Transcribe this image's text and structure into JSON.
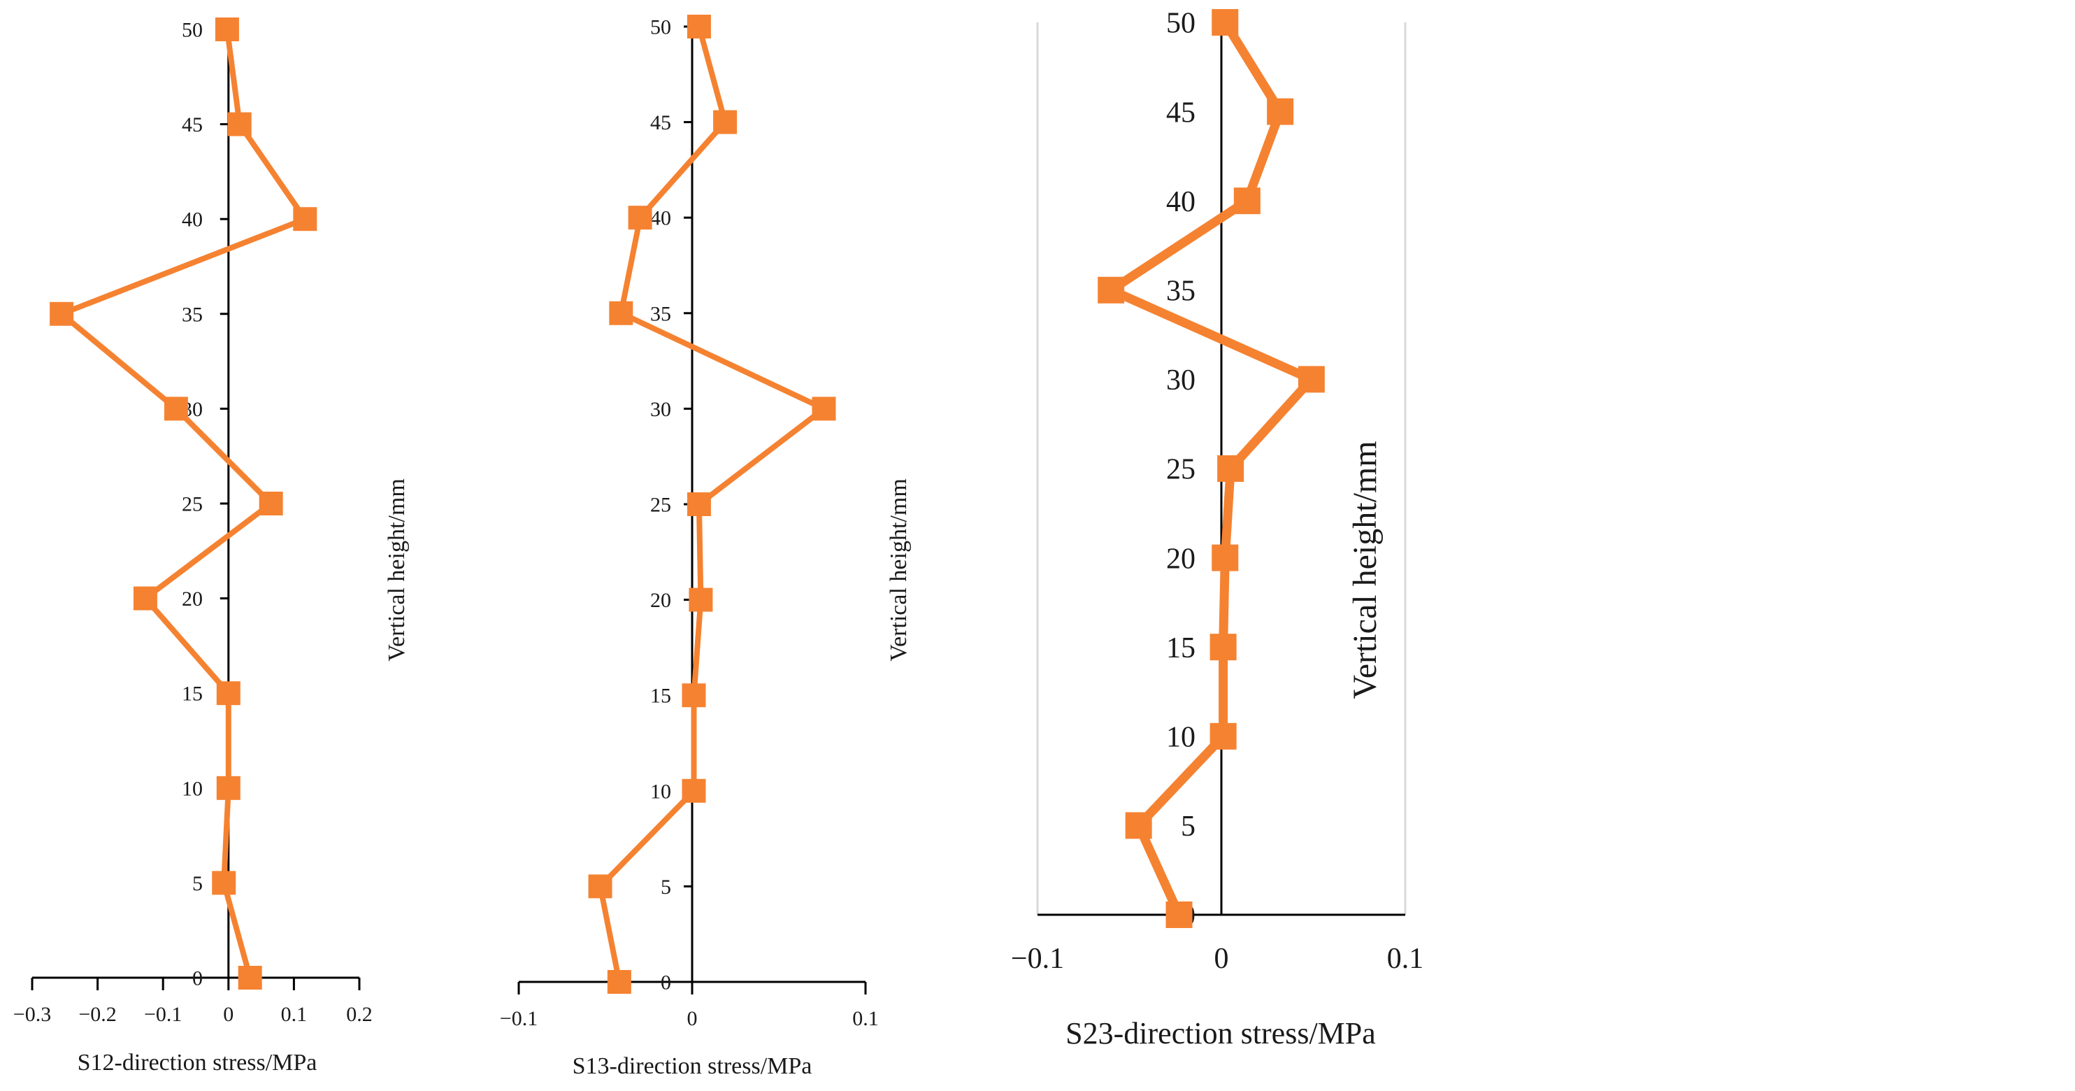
{
  "chart_data": [
    {
      "type": "line",
      "orientation": "vertical-profile",
      "xlabel": "S12-direction stress/MPa",
      "ylabel": "Vertical height/mm",
      "xlim": [
        -0.3,
        0.2
      ],
      "ylim": [
        0,
        50
      ],
      "x_ticks": [
        -0.3,
        -0.2,
        -0.1,
        0,
        0.1,
        0.2
      ],
      "x_tick_labels": [
        "−0.3",
        "−0.2",
        "−0.1",
        "0",
        "0.1",
        "0.2"
      ],
      "y_ticks": [
        0,
        5,
        10,
        15,
        20,
        25,
        30,
        35,
        40,
        45,
        50
      ],
      "series": [
        {
          "name": "S12",
          "color": "#f58231",
          "y": [
            0,
            5,
            10,
            15,
            20,
            25,
            30,
            35,
            40,
            45,
            50
          ],
          "x": [
            0.033,
            -0.007,
            0,
            0,
            -0.127,
            0.065,
            -0.08,
            -0.255,
            0.117,
            0.017,
            -0.002
          ]
        }
      ]
    },
    {
      "type": "line",
      "orientation": "vertical-profile",
      "xlabel": "S13-direction stress/MPa",
      "ylabel": "Vertical height/mm",
      "xlim": [
        -0.1,
        0.1
      ],
      "ylim": [
        0,
        50
      ],
      "x_ticks": [
        -0.1,
        0,
        0.1
      ],
      "x_tick_labels": [
        "−0.1",
        "0",
        "0.1"
      ],
      "y_ticks": [
        0,
        5,
        10,
        15,
        20,
        25,
        30,
        35,
        40,
        45,
        50
      ],
      "series": [
        {
          "name": "S13",
          "color": "#f58231",
          "y": [
            0,
            5,
            10,
            15,
            20,
            25,
            30,
            35,
            40,
            45,
            50
          ],
          "x": [
            -0.042,
            -0.053,
            0.001,
            0.001,
            0.005,
            0.004,
            0.076,
            -0.041,
            -0.03,
            0.019,
            0.004
          ]
        }
      ]
    },
    {
      "type": "line",
      "orientation": "vertical-profile",
      "xlabel": "S23-direction stress/MPa",
      "ylabel": "Vertical height/mm",
      "xlim": [
        -0.1,
        0.1
      ],
      "ylim": [
        0,
        50
      ],
      "x_ticks": [
        -0.1,
        0,
        0.1
      ],
      "x_tick_labels": [
        "−0.1",
        "0",
        "0.1"
      ],
      "y_ticks": [
        0,
        5,
        10,
        15,
        20,
        25,
        30,
        35,
        40,
        45,
        50
      ],
      "series": [
        {
          "name": "S23",
          "color": "#f58231",
          "y": [
            0,
            5,
            10,
            15,
            20,
            25,
            30,
            35,
            40,
            45,
            50
          ],
          "x": [
            -0.023,
            -0.045,
            0.001,
            0.001,
            0.002,
            0.005,
            0.049,
            -0.06,
            0.014,
            0.032,
            0.002
          ]
        }
      ]
    }
  ]
}
